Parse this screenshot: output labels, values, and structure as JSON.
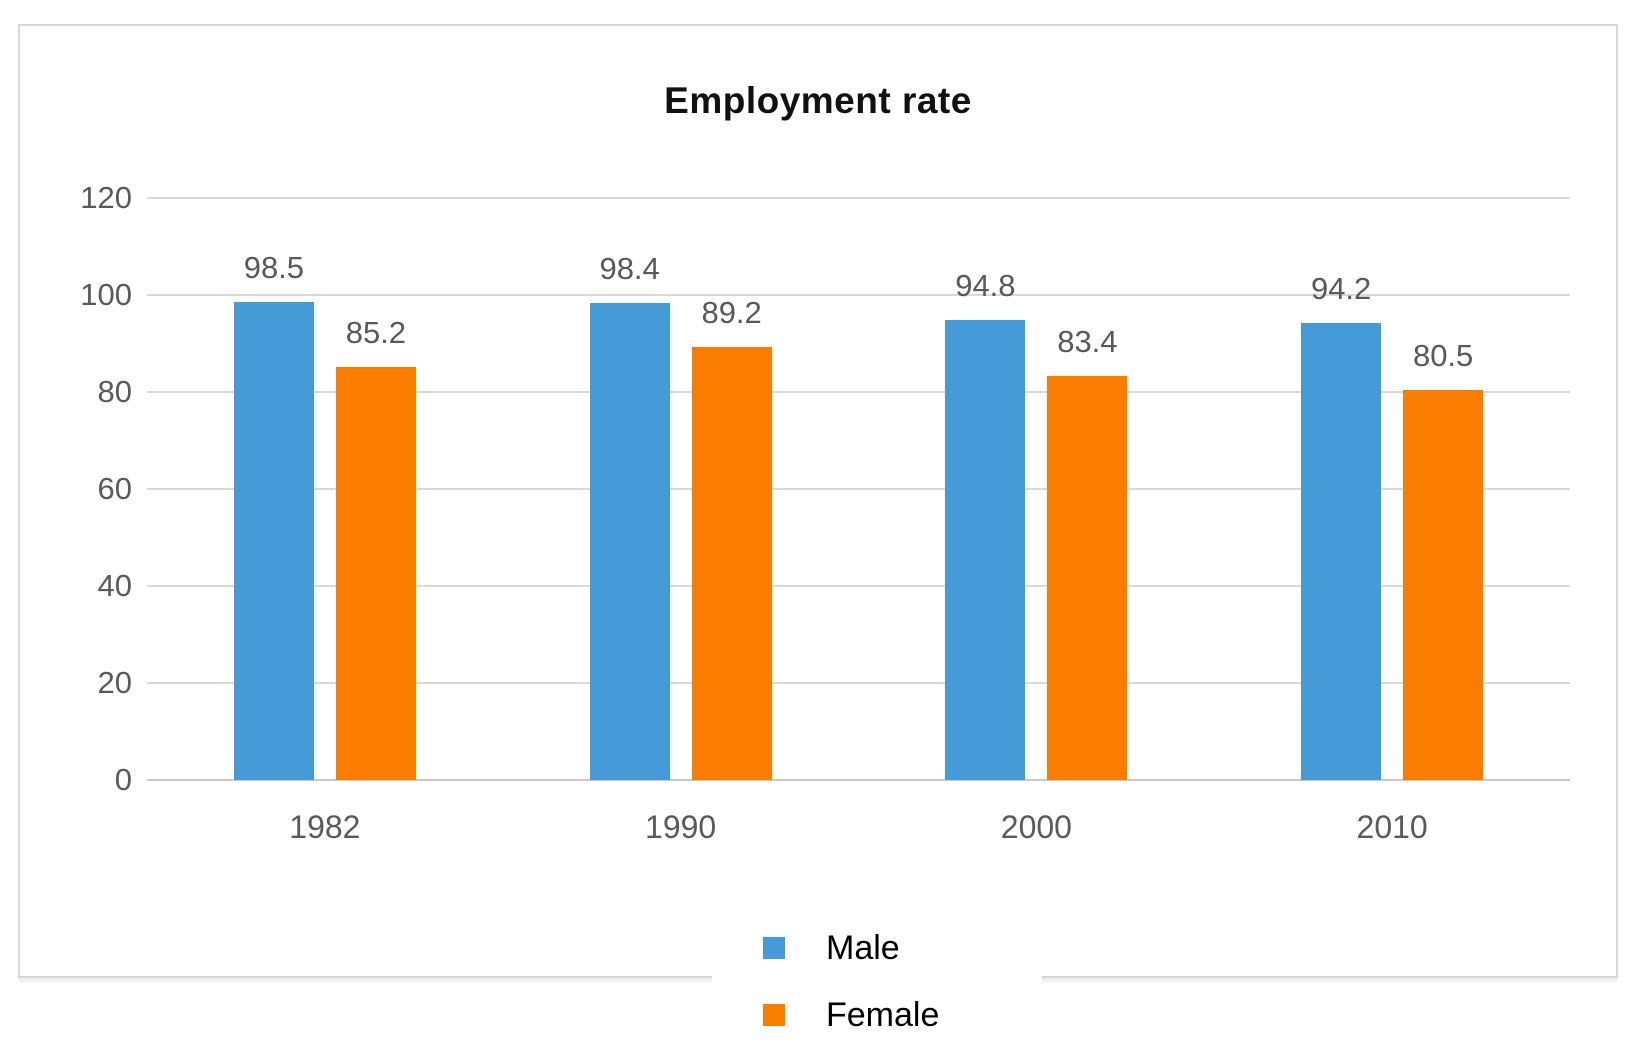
{
  "chart_data": {
    "type": "bar",
    "title": "Employment rate",
    "categories": [
      "1982",
      "1990",
      "2000",
      "2010"
    ],
    "series": [
      {
        "name": "Male",
        "color": "#449BD8",
        "values": [
          98.5,
          98.4,
          94.8,
          94.2
        ]
      },
      {
        "name": "Female",
        "color": "#FA7D00",
        "values": [
          85.2,
          89.2,
          83.4,
          80.5
        ]
      }
    ],
    "ylim": [
      0,
      120
    ],
    "yticks": [
      0,
      20,
      40,
      60,
      80,
      100,
      120
    ],
    "xlabel": "",
    "ylabel": "",
    "grid": true,
    "data_labels": true,
    "legend_position": "bottom",
    "gridline_color": "#d9d9d9",
    "axisline_color": "#c9c9c9",
    "tick_label_color": "#5a5a5a"
  }
}
